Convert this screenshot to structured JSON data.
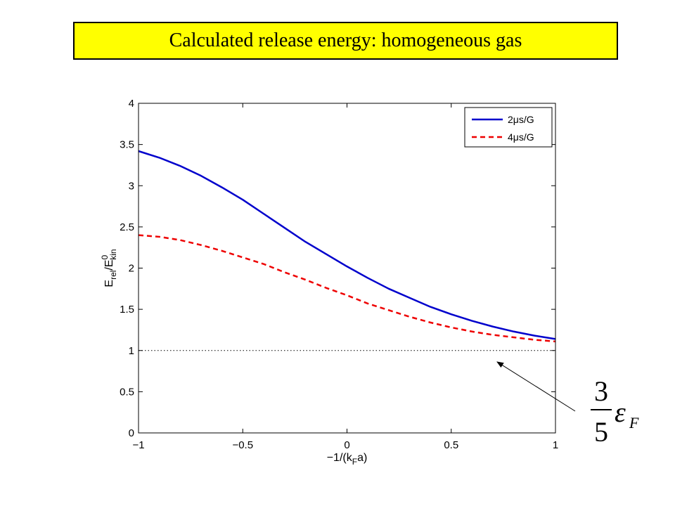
{
  "title": "Calculated release energy: homogeneous gas",
  "chart_data": {
    "type": "line",
    "xlabel": {
      "main": "−1/(k",
      "sub": "F",
      "tail": "a)"
    },
    "ylabel": {
      "main": "E",
      "sub1": "rel",
      "mid": "/E",
      "sup": "0",
      "sub2": "kin"
    },
    "xlim": [
      -1,
      1
    ],
    "ylim": [
      0,
      4
    ],
    "xticks": [
      -1,
      -0.5,
      0,
      0.5,
      1
    ],
    "xtick_labels": [
      "−1",
      "−0.5",
      "0",
      "0.5",
      "1"
    ],
    "yticks": [
      0,
      0.5,
      1,
      1.5,
      2,
      2.5,
      3,
      3.5,
      4
    ],
    "ytick_labels": [
      "0",
      "0.5",
      "1",
      "1.5",
      "2",
      "2.5",
      "3",
      "3.5",
      "4"
    ],
    "grid": false,
    "legend_position": "top-right",
    "series": [
      {
        "name": "2μs/G",
        "color": "#0000cc",
        "style": "solid",
        "x": [
          -1,
          -0.9,
          -0.8,
          -0.7,
          -0.6,
          -0.5,
          -0.4,
          -0.3,
          -0.2,
          -0.1,
          0,
          0.1,
          0.2,
          0.3,
          0.4,
          0.5,
          0.6,
          0.7,
          0.8,
          0.9,
          1
        ],
        "y": [
          3.42,
          3.34,
          3.24,
          3.12,
          2.98,
          2.83,
          2.66,
          2.49,
          2.32,
          2.17,
          2.02,
          1.88,
          1.75,
          1.64,
          1.53,
          1.44,
          1.36,
          1.29,
          1.23,
          1.18,
          1.14
        ]
      },
      {
        "name": "4μs/G",
        "color": "#ee0000",
        "style": "dashed",
        "x": [
          -1,
          -0.9,
          -0.8,
          -0.7,
          -0.6,
          -0.5,
          -0.4,
          -0.3,
          -0.2,
          -0.1,
          0,
          0.1,
          0.2,
          0.3,
          0.4,
          0.5,
          0.6,
          0.7,
          0.8,
          0.9,
          1
        ],
        "y": [
          2.4,
          2.38,
          2.34,
          2.28,
          2.21,
          2.13,
          2.05,
          1.95,
          1.86,
          1.76,
          1.67,
          1.57,
          1.49,
          1.41,
          1.34,
          1.28,
          1.23,
          1.19,
          1.16,
          1.13,
          1.11
        ]
      }
    ],
    "reference_line": {
      "y": 1,
      "style": "dotted",
      "color": "#000000"
    },
    "annotation": {
      "numerator": "3",
      "denominator": "5",
      "symbol": "ε",
      "subscript": "F",
      "target": {
        "x": 0.72,
        "y": 0.99
      }
    }
  }
}
